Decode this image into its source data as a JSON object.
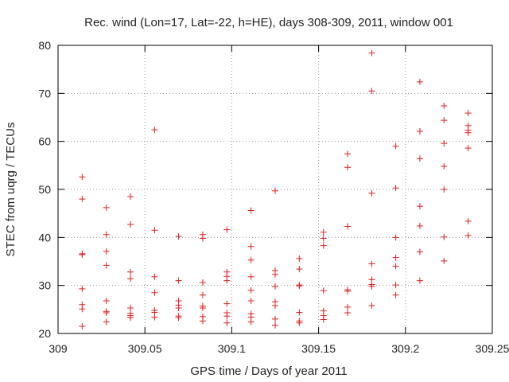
{
  "chart_data": {
    "type": "scatter",
    "title": "Rec. wind (Lon=17, Lat=-22, h=HE), days 308-309, 2011, window 001",
    "xlabel": "GPS time / Days of year 2011",
    "ylabel": "STEC from uqrg / TECUs",
    "xlim": [
      309,
      309.25
    ],
    "ylim": [
      20,
      80
    ],
    "xticks": [
      "309",
      "309.05",
      "309.1",
      "309.15",
      "309.2",
      "309.25"
    ],
    "yticks": [
      "20",
      "30",
      "40",
      "50",
      "60",
      "70",
      "80"
    ],
    "grid": true,
    "marker": "+",
    "color": "#e0201e",
    "series": [
      {
        "points": [
          [
            309.0139,
            52.6
          ],
          [
            309.0139,
            48.0
          ],
          [
            309.0139,
            36.6
          ],
          [
            309.0139,
            36.4
          ],
          [
            309.0139,
            29.3
          ],
          [
            309.0139,
            26.0
          ],
          [
            309.0139,
            25.1
          ],
          [
            309.0139,
            21.5
          ],
          [
            309.0278,
            46.2
          ],
          [
            309.0278,
            40.6
          ],
          [
            309.0278,
            37.1
          ],
          [
            309.0278,
            34.2
          ],
          [
            309.0278,
            26.8
          ],
          [
            309.0278,
            24.6
          ],
          [
            309.0278,
            24.3
          ],
          [
            309.0278,
            22.4
          ],
          [
            309.0417,
            48.5
          ],
          [
            309.0417,
            42.7
          ],
          [
            309.0417,
            32.8
          ],
          [
            309.0417,
            31.4
          ],
          [
            309.0417,
            25.3
          ],
          [
            309.0417,
            24.2
          ],
          [
            309.0417,
            23.7
          ],
          [
            309.0417,
            23.3
          ],
          [
            309.0556,
            62.4
          ],
          [
            309.0556,
            41.5
          ],
          [
            309.0556,
            31.8
          ],
          [
            309.0556,
            28.5
          ],
          [
            309.0556,
            24.8
          ],
          [
            309.0556,
            24.4
          ],
          [
            309.0556,
            23.4
          ],
          [
            309.0694,
            40.2
          ],
          [
            309.0694,
            31.0
          ],
          [
            309.0694,
            26.8
          ],
          [
            309.0694,
            25.9
          ],
          [
            309.0694,
            25.3
          ],
          [
            309.0694,
            23.6
          ],
          [
            309.0694,
            23.3
          ],
          [
            309.0833,
            40.6
          ],
          [
            309.0833,
            39.8
          ],
          [
            309.0833,
            30.6
          ],
          [
            309.0833,
            28.0
          ],
          [
            309.0833,
            25.7
          ],
          [
            309.0833,
            25.3
          ],
          [
            309.0833,
            23.5
          ],
          [
            309.0833,
            22.6
          ],
          [
            309.0972,
            41.6
          ],
          [
            309.0972,
            32.8
          ],
          [
            309.0972,
            31.9
          ],
          [
            309.0972,
            31.0
          ],
          [
            309.0972,
            26.2
          ],
          [
            309.0972,
            24.3
          ],
          [
            309.0972,
            23.6
          ],
          [
            309.0972,
            22.2
          ],
          [
            309.1111,
            45.6
          ],
          [
            309.1111,
            38.1
          ],
          [
            309.1111,
            35.3
          ],
          [
            309.1111,
            31.8
          ],
          [
            309.1111,
            29.0
          ],
          [
            309.1111,
            26.8
          ],
          [
            309.1111,
            24.1
          ],
          [
            309.1111,
            23.4
          ],
          [
            309.1111,
            22.4
          ],
          [
            309.125,
            49.7
          ],
          [
            309.125,
            33.1
          ],
          [
            309.125,
            32.3
          ],
          [
            309.125,
            29.8
          ],
          [
            309.125,
            26.6
          ],
          [
            309.125,
            25.8
          ],
          [
            309.125,
            23.0
          ],
          [
            309.125,
            21.7
          ],
          [
            309.1389,
            35.6
          ],
          [
            309.1389,
            33.4
          ],
          [
            309.1389,
            30.1
          ],
          [
            309.1389,
            29.9
          ],
          [
            309.1389,
            24.4
          ],
          [
            309.1389,
            22.6
          ],
          [
            309.1389,
            22.2
          ],
          [
            309.1528,
            41.1
          ],
          [
            309.1528,
            39.8
          ],
          [
            309.1528,
            38.3
          ],
          [
            309.1528,
            28.9
          ],
          [
            309.1528,
            24.7
          ],
          [
            309.1528,
            23.7
          ],
          [
            309.1528,
            22.9
          ],
          [
            309.1667,
            57.4
          ],
          [
            309.1667,
            54.6
          ],
          [
            309.1667,
            42.3
          ],
          [
            309.1667,
            29.1
          ],
          [
            309.1667,
            28.8
          ],
          [
            309.1667,
            25.5
          ],
          [
            309.1667,
            24.3
          ],
          [
            309.1806,
            78.4
          ],
          [
            309.1806,
            70.5
          ],
          [
            309.1806,
            49.2
          ],
          [
            309.1806,
            34.5
          ],
          [
            309.1806,
            31.2
          ],
          [
            309.1806,
            30.2
          ],
          [
            309.1806,
            29.8
          ],
          [
            309.1806,
            25.8
          ],
          [
            309.1944,
            59.0
          ],
          [
            309.1944,
            50.3
          ],
          [
            309.1944,
            40.0
          ],
          [
            309.1944,
            35.8
          ],
          [
            309.1944,
            34.0
          ],
          [
            309.1944,
            30.1
          ],
          [
            309.1944,
            28.0
          ],
          [
            309.2083,
            72.4
          ],
          [
            309.2083,
            62.1
          ],
          [
            309.2083,
            56.4
          ],
          [
            309.2083,
            46.5
          ],
          [
            309.2083,
            42.4
          ],
          [
            309.2083,
            37.0
          ],
          [
            309.2083,
            31.0
          ],
          [
            309.2222,
            67.4
          ],
          [
            309.2222,
            64.4
          ],
          [
            309.2222,
            59.6
          ],
          [
            309.2222,
            54.8
          ],
          [
            309.2222,
            50.0
          ],
          [
            309.2222,
            40.1
          ],
          [
            309.2222,
            35.1
          ],
          [
            309.2361,
            65.9
          ],
          [
            309.2361,
            63.3
          ],
          [
            309.2361,
            62.3
          ],
          [
            309.2361,
            61.8
          ],
          [
            309.2361,
            58.6
          ],
          [
            309.2361,
            43.4
          ],
          [
            309.2361,
            40.4
          ]
        ]
      }
    ]
  }
}
